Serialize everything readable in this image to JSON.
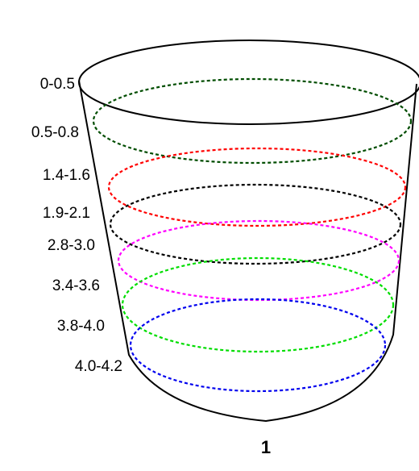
{
  "layers": [
    "0-0.5",
    "0.5-0.8",
    "1.4-1.6",
    "1.9-2.1",
    "2.8-3.0",
    "3.4-3.6",
    "3.8-4.0",
    "4.0-4.2"
  ],
  "caption": "1"
}
